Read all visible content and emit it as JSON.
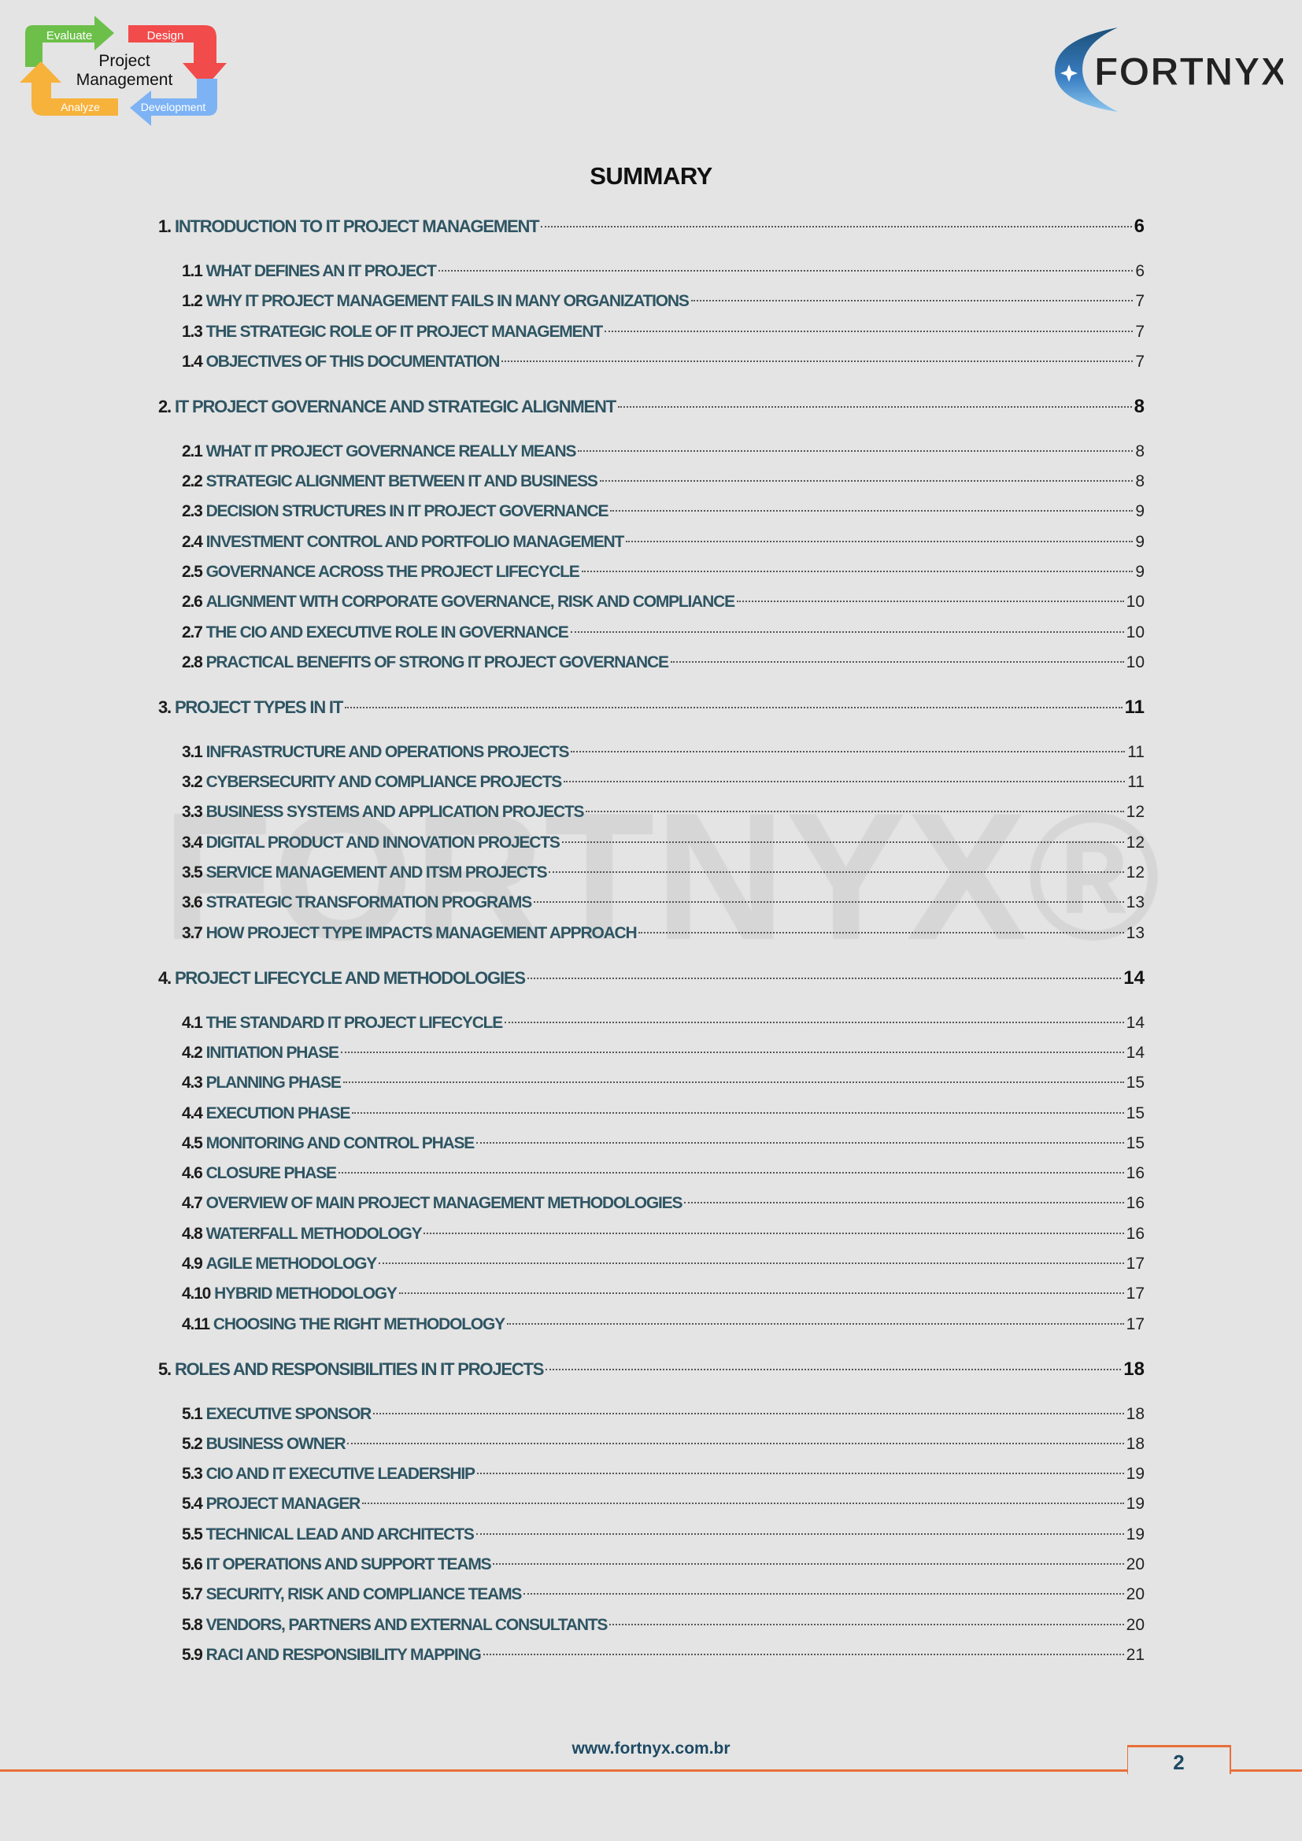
{
  "header": {
    "left_logo": {
      "title": "Project Management",
      "steps": [
        "Evaluate",
        "Design",
        "Development",
        "Analyze"
      ],
      "colors": {
        "evaluate": "#6cc04a",
        "design": "#f24b4b",
        "development": "#7db3f5",
        "analyze": "#f7b23b"
      }
    },
    "right_logo": {
      "text": "FORTNYX",
      "accent": "#2a6fa8"
    }
  },
  "watermark": "FORTNYX®",
  "title": "SUMMARY",
  "toc": [
    {
      "num": "1.",
      "label": "INTRODUCTION TO IT PROJECT MANAGEMENT",
      "page": "6",
      "items": [
        {
          "num": "1.1",
          "label": "WHAT DEFINES AN IT PROJECT",
          "page": "6"
        },
        {
          "num": "1.2",
          "label": "WHY IT PROJECT MANAGEMENT FAILS IN MANY ORGANIZATIONS",
          "page": "7"
        },
        {
          "num": "1.3",
          "label": "THE STRATEGIC ROLE OF IT PROJECT MANAGEMENT",
          "page": "7"
        },
        {
          "num": "1.4",
          "label": "OBJECTIVES OF THIS DOCUMENTATION",
          "page": "7"
        }
      ]
    },
    {
      "num": "2.",
      "label": "IT PROJECT GOVERNANCE AND STRATEGIC ALIGNMENT",
      "page": "8",
      "items": [
        {
          "num": "2.1",
          "label": "WHAT IT PROJECT GOVERNANCE REALLY MEANS",
          "page": "8"
        },
        {
          "num": "2.2",
          "label": "STRATEGIC ALIGNMENT BETWEEN IT AND BUSINESS",
          "page": "8"
        },
        {
          "num": "2.3",
          "label": "DECISION STRUCTURES IN IT PROJECT GOVERNANCE",
          "page": "9"
        },
        {
          "num": "2.4",
          "label": "INVESTMENT CONTROL AND PORTFOLIO MANAGEMENT",
          "page": "9"
        },
        {
          "num": "2.5",
          "label": "GOVERNANCE ACROSS THE PROJECT LIFECYCLE",
          "page": "9"
        },
        {
          "num": "2.6",
          "label": "ALIGNMENT WITH CORPORATE GOVERNANCE, RISK AND COMPLIANCE",
          "page": "10"
        },
        {
          "num": "2.7",
          "label": "THE CIO AND EXECUTIVE ROLE IN GOVERNANCE",
          "page": "10"
        },
        {
          "num": "2.8",
          "label": "PRACTICAL BENEFITS OF STRONG IT PROJECT GOVERNANCE",
          "page": "10"
        }
      ]
    },
    {
      "num": "3.",
      "label": "PROJECT TYPES IN IT",
      "page": "11",
      "items": [
        {
          "num": "3.1",
          "label": "INFRASTRUCTURE AND OPERATIONS PROJECTS",
          "page": "11"
        },
        {
          "num": "3.2",
          "label": "CYBERSECURITY AND COMPLIANCE PROJECTS",
          "page": "11"
        },
        {
          "num": "3.3",
          "label": "BUSINESS SYSTEMS AND APPLICATION PROJECTS",
          "page": "12"
        },
        {
          "num": "3.4",
          "label": "DIGITAL PRODUCT AND INNOVATION PROJECTS",
          "page": "12"
        },
        {
          "num": "3.5",
          "label": "SERVICE MANAGEMENT AND ITSM PROJECTS",
          "page": "12"
        },
        {
          "num": "3.6",
          "label": "STRATEGIC TRANSFORMATION PROGRAMS",
          "page": "13"
        },
        {
          "num": "3.7",
          "label": "HOW PROJECT TYPE IMPACTS MANAGEMENT APPROACH",
          "page": "13"
        }
      ]
    },
    {
      "num": "4.",
      "label": "PROJECT LIFECYCLE AND METHODOLOGIES",
      "page": "14",
      "items": [
        {
          "num": "4.1",
          "label": "THE STANDARD IT PROJECT LIFECYCLE",
          "page": "14"
        },
        {
          "num": "4.2",
          "label": "INITIATION PHASE",
          "page": "14"
        },
        {
          "num": "4.3",
          "label": "PLANNING PHASE",
          "page": "15"
        },
        {
          "num": "4.4",
          "label": "EXECUTION PHASE",
          "page": "15"
        },
        {
          "num": "4.5",
          "label": "MONITORING AND CONTROL PHASE",
          "page": "15"
        },
        {
          "num": "4.6",
          "label": "CLOSURE PHASE",
          "page": "16"
        },
        {
          "num": "4.7",
          "label": "OVERVIEW OF MAIN PROJECT MANAGEMENT METHODOLOGIES",
          "page": "16"
        },
        {
          "num": "4.8",
          "label": "WATERFALL METHODOLOGY",
          "page": "16"
        },
        {
          "num": "4.9",
          "label": "AGILE METHODOLOGY",
          "page": "17"
        },
        {
          "num": "4.10",
          "label": "HYBRID METHODOLOGY",
          "page": "17"
        },
        {
          "num": "4.11",
          "label": "CHOOSING THE RIGHT METHODOLOGY",
          "page": "17"
        }
      ]
    },
    {
      "num": "5.",
      "label": "ROLES AND RESPONSIBILITIES IN IT PROJECTS",
      "page": "18",
      "items": [
        {
          "num": "5.1",
          "label": "EXECUTIVE SPONSOR",
          "page": "18"
        },
        {
          "num": "5.2",
          "label": "BUSINESS OWNER",
          "page": "18"
        },
        {
          "num": "5.3",
          "label": "CIO AND IT EXECUTIVE LEADERSHIP",
          "page": "19"
        },
        {
          "num": "5.4",
          "label": "PROJECT MANAGER",
          "page": "19"
        },
        {
          "num": "5.5",
          "label": "TECHNICAL LEAD AND ARCHITECTS",
          "page": "19"
        },
        {
          "num": "5.6",
          "label": "IT OPERATIONS AND SUPPORT TEAMS",
          "page": "20"
        },
        {
          "num": "5.7",
          "label": "SECURITY, RISK AND COMPLIANCE TEAMS",
          "page": "20"
        },
        {
          "num": "5.8",
          "label": "VENDORS, PARTNERS AND EXTERNAL CONSULTANTS",
          "page": "20"
        },
        {
          "num": "5.9",
          "label": "RACI AND RESPONSIBILITY MAPPING",
          "page": "21"
        }
      ]
    }
  ],
  "footer": {
    "url": "www.fortnyx.com.br",
    "page_number": "2",
    "accent": "#e8703a"
  }
}
